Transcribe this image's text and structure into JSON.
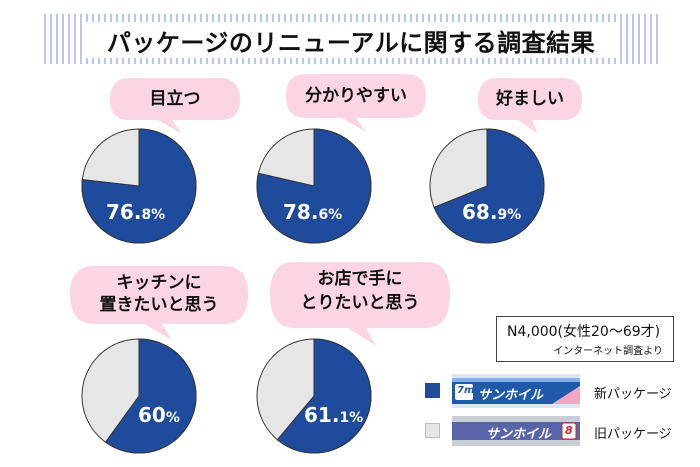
{
  "title": "パッケージのリニューアルに関する調査結果",
  "chart_data": {
    "type": "pie",
    "series": [
      {
        "name": "新パッケージ",
        "color": "#1e4b9b"
      },
      {
        "name": "旧パッケージ",
        "color": "#e6e6e6"
      }
    ],
    "charts": [
      {
        "label": "目立つ",
        "value": 76.8,
        "pct_main": "76.",
        "pct_sub": "8%"
      },
      {
        "label": "分かりやすい",
        "value": 78.6,
        "pct_main": "78.",
        "pct_sub": "6%"
      },
      {
        "label": "好ましい",
        "value": 68.9,
        "pct_main": "68.",
        "pct_sub": "9%"
      },
      {
        "label_line1": "キッチンに",
        "label_line2": "置きたいと思う",
        "value": 60,
        "pct_main": "60",
        "pct_sub": "%"
      },
      {
        "label_line1": "お店で手に",
        "label_line2": "とりたいと思う",
        "value": 61.1,
        "pct_main": "61.",
        "pct_sub": "1%"
      }
    ]
  },
  "note": {
    "line1": "N4,000(女性20〜69才)",
    "line2": "インターネット調査より"
  },
  "legend": [
    {
      "label": "新パッケージ",
      "color": "#1e4b9b"
    },
    {
      "label": "旧パッケージ",
      "color": "#e6e6e6"
    }
  ],
  "packages": {
    "new_badge": "7m",
    "new_brand": "サンホイル",
    "old_brand": "サンホイル",
    "old_badge": "8"
  },
  "colors": {
    "bubble": "#fbd5e3",
    "new": "#1e4b9b",
    "old": "#e6e6e6"
  }
}
